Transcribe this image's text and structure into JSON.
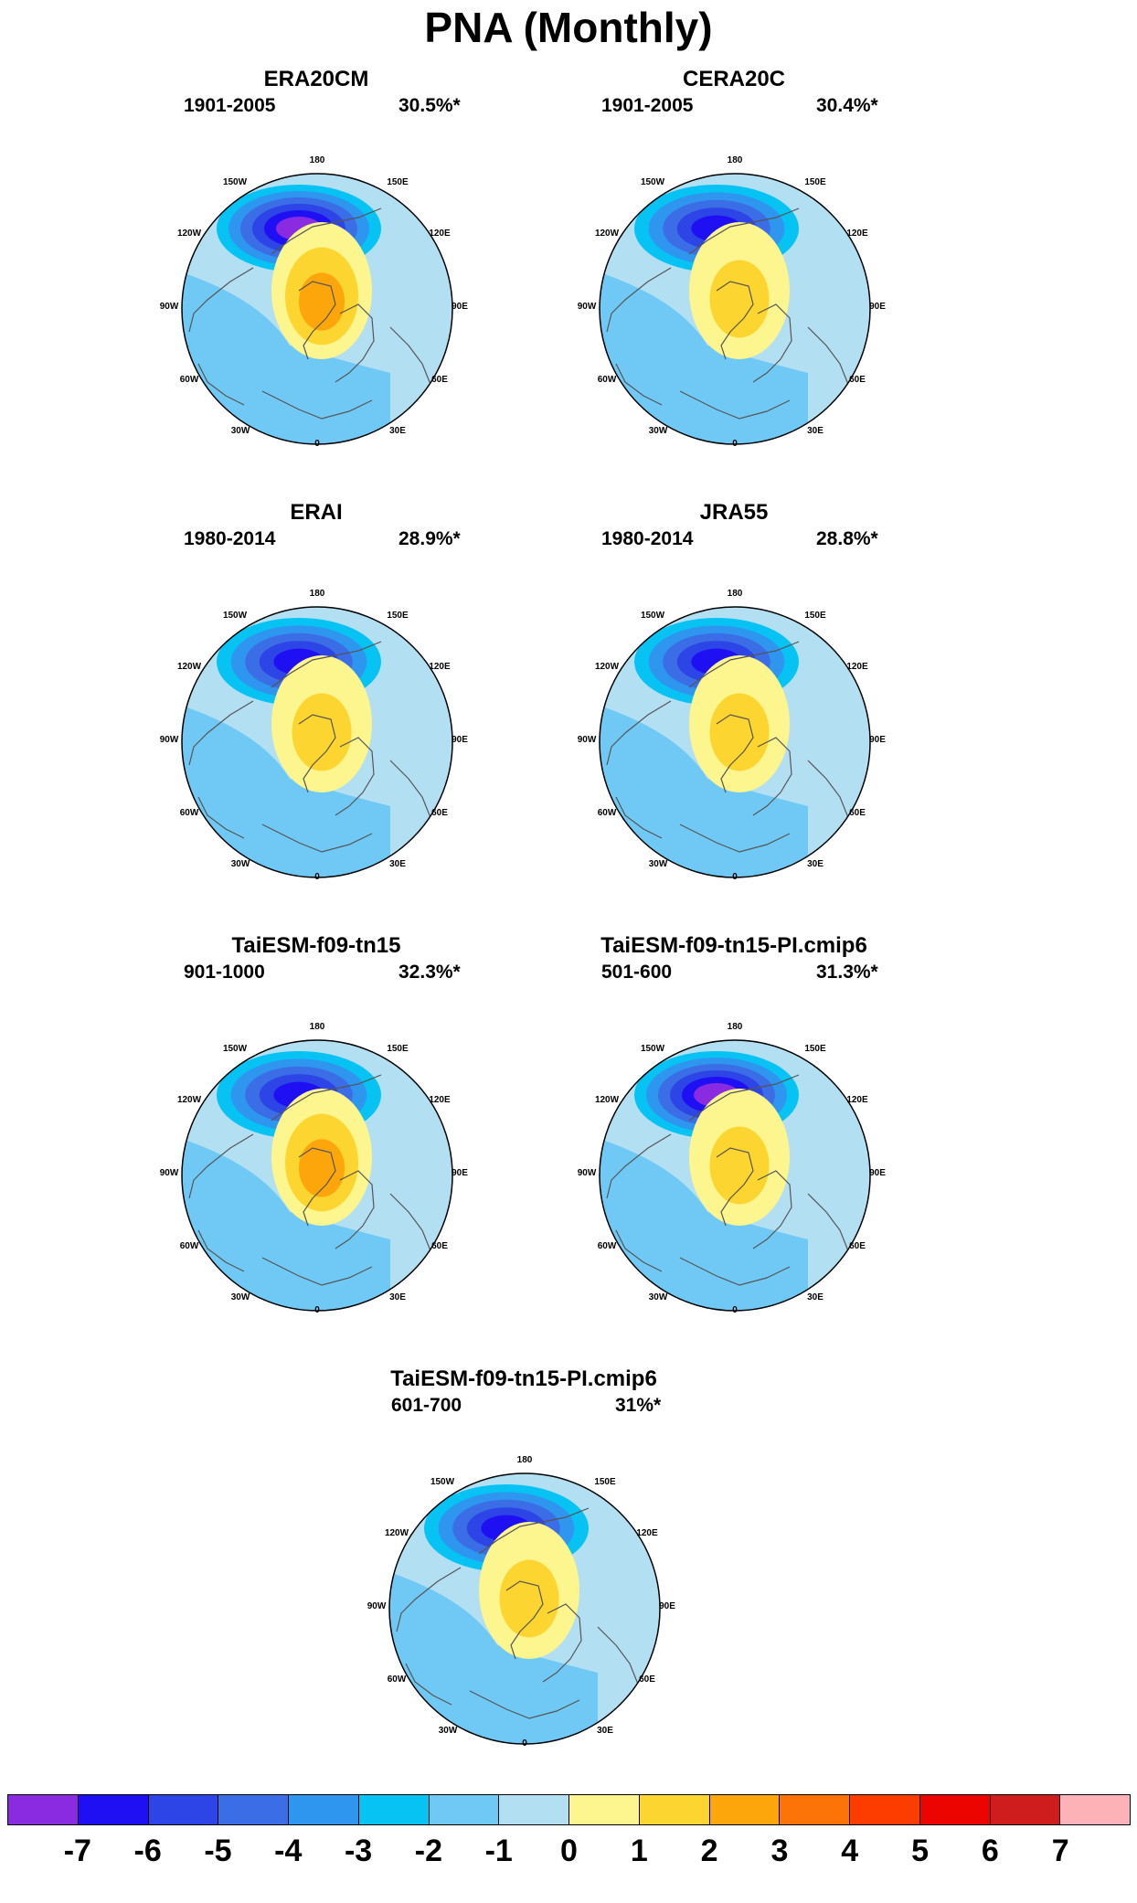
{
  "title": "PNA (Monthly)",
  "longitude_labels": [
    "180",
    "150E",
    "120E",
    "90E",
    "60E",
    "30E",
    "0",
    "30W",
    "60W",
    "90W",
    "120W",
    "150W"
  ],
  "panels": [
    {
      "title": "ERA20CM",
      "period": "1901-2005",
      "variance": "30.5%*",
      "low_level": -6,
      "high_level": 3
    },
    {
      "title": "CERA20C",
      "period": "1901-2005",
      "variance": "30.4%*",
      "low_level": -5,
      "high_level": 2
    },
    {
      "title": "ERAI",
      "period": "1980-2014",
      "variance": "28.9%*",
      "low_level": -5,
      "high_level": 2
    },
    {
      "title": "JRA55",
      "period": "1980-2014",
      "variance": "28.8%*",
      "low_level": -5,
      "high_level": 2
    },
    {
      "title": "TaiESM-f09-tn15",
      "period": "901-1000",
      "variance": "32.3%*",
      "low_level": -5,
      "high_level": 3
    },
    {
      "title": "TaiESM-f09-tn15-PI.cmip6",
      "period": "501-600",
      "variance": "31.3%*",
      "low_level": -6,
      "high_level": 2
    },
    {
      "title": "TaiESM-f09-tn15-PI.cmip6",
      "period": "601-700",
      "variance": "31%*",
      "low_level": -5,
      "high_level": 2
    }
  ],
  "colorbar": {
    "labels": [
      "-7",
      "-6",
      "-5",
      "-4",
      "-3",
      "-2",
      "-1",
      "0",
      "1",
      "2",
      "3",
      "4",
      "5",
      "6",
      "7"
    ],
    "colors": [
      "#8a2be2",
      "#1e10f2",
      "#2d44e6",
      "#3a6de6",
      "#2f96f0",
      "#06c3f4",
      "#70c9f4",
      "#b3dff3",
      "#fdf58e",
      "#fdd530",
      "#fca60c",
      "#fc7308",
      "#fd3d00",
      "#ec0400",
      "#cf1d1d",
      "#fdb2b8"
    ]
  }
}
